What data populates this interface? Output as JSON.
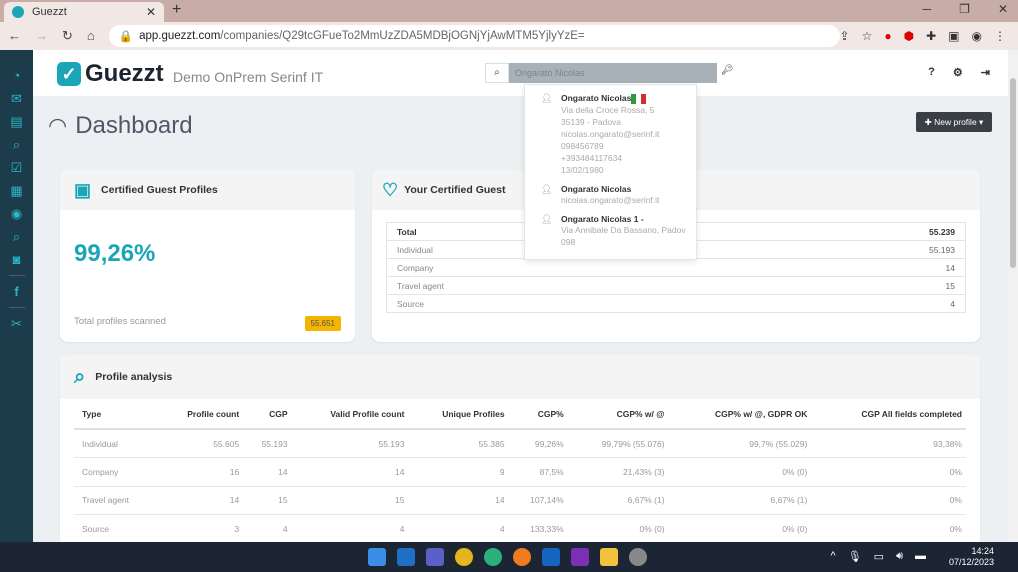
{
  "browser": {
    "tab_title": "Guezzt",
    "url_domain": "app.guezzt.com",
    "url_path": "/companies/Q29tcGFueTo2MmUzZDA5MDBjOGNjYjAwMTM5YjlyYzE="
  },
  "header": {
    "logo": "Guezzt",
    "company": "Demo OnPrem Serinf IT",
    "search_value": "Ongarato Nicolas",
    "help": "?"
  },
  "page": {
    "title": "Dashboard",
    "new_profile": "New profile"
  },
  "certified": {
    "title": "Certified Guest Profiles",
    "percent": "99,26%",
    "scanned_label": "Total profiles scanned",
    "scanned_value": "55.651"
  },
  "your_certified": {
    "title": "Your Certified Guest",
    "rows": [
      [
        "Total",
        "55.239"
      ],
      [
        "Individual",
        "55.193"
      ],
      [
        "Company",
        "14"
      ],
      [
        "Travel agent",
        "15"
      ],
      [
        "Source",
        "4"
      ]
    ]
  },
  "search_results": [
    {
      "name": "Ongarato Nicolas",
      "flag": "italy",
      "lines": [
        "Via della Croce Rossa, 5",
        "35139 - Padova",
        "nicolas.ongarato@serinf.it",
        "098456789",
        "+393484117634",
        "13/02/1980"
      ]
    },
    {
      "name": "Ongarato Nicolas",
      "lines": [
        "nicolas.ongarato@serinf.it"
      ]
    },
    {
      "name": "Ongarato Nicolas 1 -",
      "lines": [
        "Via Annibale Da Bassano, Padov",
        "098"
      ]
    }
  ],
  "analysis": {
    "title": "Profile analysis",
    "headers": [
      "Type",
      "Profile count",
      "CGP",
      "Valid Profile count",
      "Unique Profiles",
      "CGP%",
      "CGP% w/ @",
      "CGP% w/ @, GDPR OK",
      "CGP All fields completed"
    ],
    "rows": [
      [
        "Individual",
        "55.605",
        "55.193",
        "55.193",
        "55.385",
        "99,26%",
        "99,79% (55.076)",
        "99,7% (55.029)",
        "93,38%"
      ],
      [
        "Company",
        "16",
        "14",
        "14",
        "9",
        "87,5%",
        "21,43% (3)",
        "0% (0)",
        "0%"
      ],
      [
        "Travel agent",
        "14",
        "15",
        "15",
        "14",
        "107,14%",
        "6,67% (1)",
        "6,67% (1)",
        "0%"
      ],
      [
        "Source",
        "3",
        "4",
        "4",
        "4",
        "133,33%",
        "0% (0)",
        "0% (0)",
        "0%"
      ]
    ]
  },
  "taskbar": {
    "time": "14:24",
    "date": "07/12/2023"
  },
  "colors": {
    "accent": "#1aa6b7",
    "sidebar": "#1c3c4b",
    "badge": "#f5b400"
  }
}
